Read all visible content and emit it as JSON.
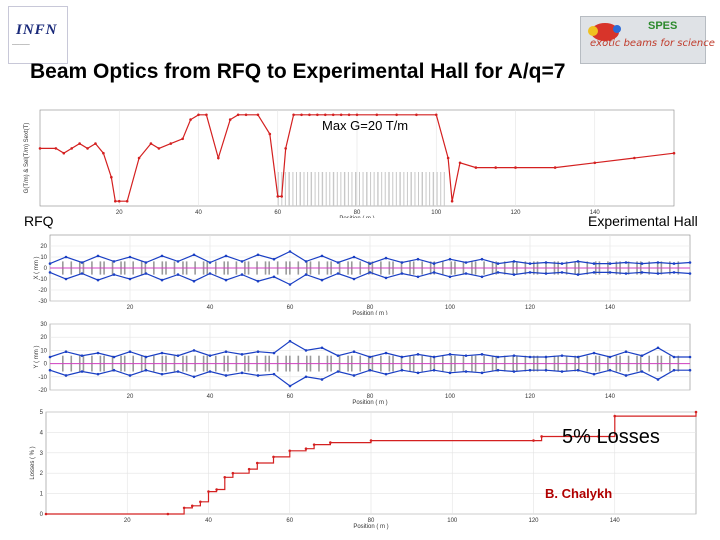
{
  "slide": {
    "title": "Beam Optics from RFQ to Experimental Hall for  A/q=7",
    "infn_logo_text": "INFN",
    "spes_logo_letters": "SPES",
    "spes_logo_tagline": "exotic beams for science",
    "label_rfq": "RFQ",
    "label_hall": "Experimental Hall",
    "label_maxg": "Max G=20 T/m",
    "label_losses": "5% Losses",
    "author": "B. Chalykh",
    "colors": {
      "red": "#d42020",
      "blue": "#1a3fc4",
      "magenta": "#d040c0",
      "author": "#b00000"
    }
  },
  "chart_data": [
    {
      "type": "line",
      "name": "gradient-plot",
      "xlabel": "Position ( m )",
      "ylabel": "G(T/m) & Sel(T/m) Sext(T)",
      "xlim": [
        0,
        160
      ],
      "ylim": [
        0,
        20
      ],
      "xticks": [
        "20",
        "40",
        "60",
        "80",
        "100",
        "120",
        "140"
      ],
      "yticks": [],
      "x": [
        0,
        4,
        6,
        8,
        10,
        12,
        14,
        16,
        18,
        19,
        20,
        22,
        25,
        28,
        30,
        33,
        36,
        38,
        40,
        42,
        45,
        48,
        50,
        52,
        55,
        58,
        60,
        61,
        62,
        64,
        66,
        68,
        70,
        72,
        74,
        76,
        78,
        80,
        85,
        90,
        95,
        100,
        103,
        104,
        106,
        110,
        115,
        120,
        130,
        140,
        150,
        160
      ],
      "series": [
        {
          "name": "G",
          "values": [
            12,
            12,
            11,
            12,
            13,
            12,
            13,
            11,
            6,
            1,
            1,
            1,
            10,
            13,
            12,
            13,
            14,
            18,
            19,
            19,
            10,
            18,
            19,
            19,
            19,
            15,
            2,
            2,
            12,
            19,
            19,
            19,
            19,
            19,
            19,
            19,
            19,
            19,
            19,
            19,
            19,
            19,
            10,
            1,
            9,
            8,
            8,
            8,
            8,
            9,
            10,
            11
          ]
        }
      ]
    },
    {
      "type": "line",
      "name": "envelope-x",
      "xlabel": "Position ( m )",
      "ylabel": "X ( mm )",
      "xlim": [
        0,
        160
      ],
      "ylim": [
        -30,
        30
      ],
      "xticks": [
        "20",
        "40",
        "60",
        "80",
        "100",
        "120",
        "140"
      ],
      "yticks": [
        "20",
        "10",
        "0",
        "-10",
        "-20",
        "-30"
      ],
      "x": [
        0,
        4,
        8,
        12,
        16,
        20,
        24,
        28,
        32,
        36,
        40,
        44,
        48,
        52,
        56,
        60,
        64,
        68,
        72,
        76,
        80,
        84,
        88,
        92,
        96,
        100,
        104,
        108,
        112,
        116,
        120,
        124,
        128,
        132,
        136,
        140,
        144,
        148,
        152,
        156,
        160
      ],
      "series": [
        {
          "name": "upper",
          "values": [
            4,
            10,
            5,
            11,
            6,
            10,
            5,
            11,
            6,
            12,
            5,
            11,
            6,
            12,
            8,
            15,
            6,
            11,
            5,
            10,
            4,
            9,
            5,
            8,
            4,
            8,
            5,
            8,
            4,
            6,
            4,
            5,
            4,
            6,
            4,
            4,
            5,
            4,
            5,
            4,
            5
          ]
        },
        {
          "name": "lower",
          "values": [
            -4,
            -10,
            -5,
            -11,
            -6,
            -10,
            -5,
            -11,
            -6,
            -12,
            -5,
            -11,
            -6,
            -12,
            -8,
            -15,
            -6,
            -11,
            -5,
            -10,
            -4,
            -9,
            -5,
            -8,
            -4,
            -8,
            -5,
            -8,
            -4,
            -6,
            -4,
            -5,
            -4,
            -6,
            -4,
            -4,
            -5,
            -4,
            -5,
            -4,
            -5
          ]
        }
      ]
    },
    {
      "type": "line",
      "name": "envelope-y",
      "xlabel": "Position ( m )",
      "ylabel": "Y ( mm )",
      "xlim": [
        0,
        160
      ],
      "ylim": [
        -20,
        30
      ],
      "xticks": [
        "20",
        "40",
        "60",
        "80",
        "100",
        "120",
        "140"
      ],
      "yticks": [
        "30",
        "20",
        "10",
        "0",
        "-10",
        "-20"
      ],
      "x": [
        0,
        4,
        8,
        12,
        16,
        20,
        24,
        28,
        32,
        36,
        40,
        44,
        48,
        52,
        56,
        60,
        64,
        68,
        72,
        76,
        80,
        84,
        88,
        92,
        96,
        100,
        104,
        108,
        112,
        116,
        120,
        124,
        128,
        132,
        136,
        140,
        144,
        148,
        152,
        156,
        160
      ],
      "series": [
        {
          "name": "upper",
          "values": [
            5,
            9,
            6,
            8,
            5,
            9,
            5,
            8,
            6,
            10,
            6,
            9,
            7,
            9,
            8,
            17,
            10,
            12,
            6,
            9,
            5,
            8,
            5,
            7,
            5,
            7,
            6,
            7,
            5,
            6,
            5,
            5,
            6,
            5,
            8,
            5,
            9,
            6,
            12,
            5,
            5
          ]
        },
        {
          "name": "lower",
          "values": [
            -5,
            -9,
            -6,
            -8,
            -5,
            -9,
            -5,
            -8,
            -6,
            -10,
            -6,
            -9,
            -7,
            -9,
            -8,
            -17,
            -10,
            -12,
            -6,
            -9,
            -5,
            -8,
            -5,
            -7,
            -5,
            -7,
            -6,
            -7,
            -5,
            -6,
            -5,
            -5,
            -6,
            -5,
            -8,
            -5,
            -9,
            -6,
            -12,
            -5,
            -5
          ]
        }
      ]
    },
    {
      "type": "line",
      "name": "losses-plot",
      "xlabel": "Position ( m )",
      "ylabel": "Losses ( % )",
      "xlim": [
        0,
        160
      ],
      "ylim": [
        0,
        5
      ],
      "xticks": [
        "20",
        "40",
        "60",
        "80",
        "100",
        "120",
        "140"
      ],
      "yticks": [
        "5",
        "4",
        "3",
        "2",
        "1",
        "0"
      ],
      "x": [
        0,
        30,
        34,
        36,
        38,
        40,
        42,
        44,
        46,
        50,
        52,
        56,
        60,
        64,
        66,
        70,
        80,
        120,
        122,
        136,
        140,
        160
      ],
      "series": [
        {
          "name": "losses",
          "values": [
            0,
            0,
            0.3,
            0.4,
            0.6,
            1.1,
            1.2,
            1.8,
            2.0,
            2.2,
            2.5,
            2.8,
            3.1,
            3.2,
            3.4,
            3.5,
            3.6,
            3.6,
            3.8,
            3.8,
            4.8,
            5.0
          ]
        }
      ]
    }
  ]
}
